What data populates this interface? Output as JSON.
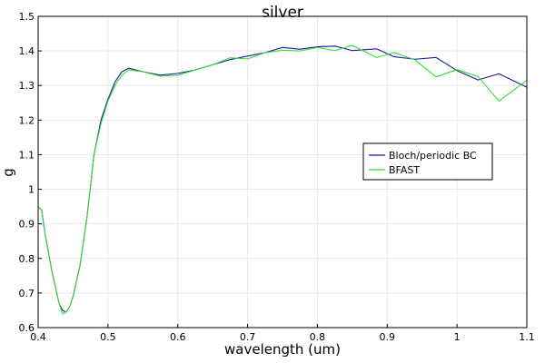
{
  "chart_data": {
    "type": "line",
    "title": "silver",
    "xlabel": "wavelength (um)",
    "ylabel": "g",
    "xlim": [
      0.4,
      1.1
    ],
    "ylim": [
      0.6,
      1.5
    ],
    "grid": true,
    "legend_position": "right",
    "x_ticks": [
      "0.4",
      "0.5",
      "0.6",
      "0.7",
      "0.8",
      "0.9",
      "1",
      "1.1"
    ],
    "y_ticks": [
      "0.6",
      "0.7",
      "0.8",
      "0.9",
      "1",
      "1.1",
      "1.2",
      "1.3",
      "1.4",
      "1.5"
    ],
    "series": [
      {
        "name": "Bloch/periodic BC",
        "color": "#1a1aa6",
        "x": [
          0.4,
          0.405,
          0.41,
          0.42,
          0.43,
          0.435,
          0.44,
          0.445,
          0.45,
          0.46,
          0.47,
          0.48,
          0.49,
          0.5,
          0.51,
          0.52,
          0.53,
          0.55,
          0.575,
          0.6,
          0.625,
          0.65,
          0.675,
          0.7,
          0.725,
          0.75,
          0.775,
          0.8,
          0.825,
          0.85,
          0.885,
          0.91,
          0.94,
          0.97,
          1.0,
          1.03,
          1.06,
          1.1
        ],
        "y": [
          0.95,
          0.94,
          0.87,
          0.76,
          0.67,
          0.65,
          0.645,
          0.66,
          0.69,
          0.78,
          0.92,
          1.1,
          1.2,
          1.26,
          1.31,
          1.34,
          1.35,
          1.34,
          1.33,
          1.335,
          1.345,
          1.36,
          1.375,
          1.385,
          1.395,
          1.41,
          1.405,
          1.412,
          1.414,
          1.401,
          1.406,
          1.383,
          1.376,
          1.381,
          1.343,
          1.316,
          1.334,
          1.295
        ]
      },
      {
        "name": "BFAST",
        "color": "#33dd33",
        "x": [
          0.4,
          0.405,
          0.41,
          0.42,
          0.43,
          0.435,
          0.44,
          0.445,
          0.45,
          0.46,
          0.47,
          0.48,
          0.49,
          0.5,
          0.51,
          0.52,
          0.53,
          0.55,
          0.575,
          0.6,
          0.625,
          0.65,
          0.675,
          0.7,
          0.725,
          0.75,
          0.775,
          0.8,
          0.825,
          0.85,
          0.885,
          0.91,
          0.94,
          0.97,
          1.0,
          1.03,
          1.06,
          1.1
        ],
        "y": [
          0.95,
          0.94,
          0.87,
          0.76,
          0.67,
          0.64,
          0.645,
          0.66,
          0.69,
          0.78,
          0.92,
          1.1,
          1.19,
          1.255,
          1.3,
          1.33,
          1.345,
          1.34,
          1.327,
          1.33,
          1.345,
          1.36,
          1.38,
          1.377,
          1.395,
          1.402,
          1.4,
          1.41,
          1.401,
          1.416,
          1.381,
          1.395,
          1.374,
          1.325,
          1.346,
          1.326,
          1.255,
          1.315
        ]
      }
    ]
  }
}
